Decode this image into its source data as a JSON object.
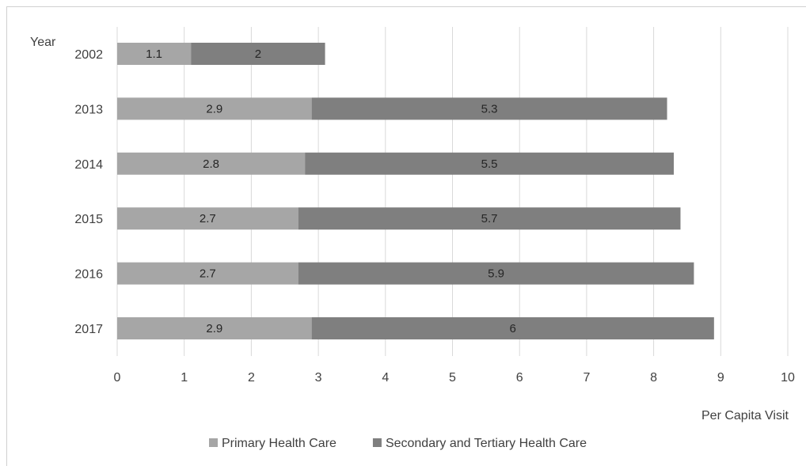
{
  "chart_data": {
    "type": "bar",
    "orientation": "horizontal",
    "stacked": true,
    "categories": [
      "2002",
      "2013",
      "2014",
      "2015",
      "2016",
      "2017"
    ],
    "series": [
      {
        "name": "Primary Health Care",
        "values": [
          1.1,
          2.9,
          2.8,
          2.7,
          2.7,
          2.9
        ],
        "color": "#a6a6a6"
      },
      {
        "name": "Secondary and Tertiary Health Care",
        "values": [
          2,
          5.3,
          5.5,
          5.7,
          5.9,
          6
        ],
        "color": "#7f7f7f"
      }
    ],
    "xlabel": "Per Capita Visit",
    "ylabel": "Year",
    "xlim": [
      0,
      10
    ],
    "xticks": [
      "0",
      "1",
      "2",
      "3",
      "4",
      "5",
      "6",
      "7",
      "8",
      "9",
      "10"
    ],
    "grid": true,
    "legend": "bottom"
  }
}
